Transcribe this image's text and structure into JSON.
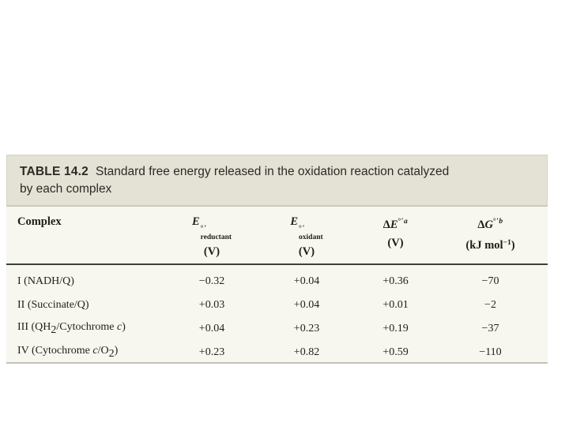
{
  "table": {
    "title_label": "TABLE 14.2",
    "title_line1": "Standard free energy released in the oxidation reaction catalyzed",
    "title_line2": "by each complex",
    "columns": {
      "complex": {
        "label": "Complex"
      },
      "e_reductant": {
        "symbol": "E",
        "sup": "°′",
        "sub": "reductant",
        "unit": "(V)"
      },
      "e_oxidant": {
        "symbol": "E",
        "sup": "°′",
        "sub": "oxidant",
        "unit": "(V)"
      },
      "delta_e": {
        "delta": "Δ",
        "symbol": "E",
        "sup": "°′",
        "sup_var": "a",
        "unit": "(V)"
      },
      "delta_g": {
        "delta": "Δ",
        "symbol": "G",
        "sup": "°′",
        "sup_var": "b",
        "unit_pre": "(kJ mol",
        "unit_sup": "−1",
        "unit_post": ")"
      }
    },
    "rows": [
      {
        "complex_html": "I (NADH/Q)",
        "e_reductant": "−0.32",
        "e_oxidant": "+0.04",
        "delta_e": "+0.36",
        "delta_g": "−70"
      },
      {
        "complex_html": "II (Succinate/Q)",
        "e_reductant": "+0.03",
        "e_oxidant": "+0.04",
        "delta_e": "+0.01",
        "delta_g": "−2"
      },
      {
        "complex_html": "III (QH<sub>2</sub>/Cytochrome <i>c</i>)",
        "e_reductant": "+0.04",
        "e_oxidant": "+0.23",
        "delta_e": "+0.19",
        "delta_g": "−37"
      },
      {
        "complex_html": "IV (Cytochrome <i>c</i>/O<sub>2</sub>)",
        "e_reductant": "+0.23",
        "e_oxidant": "+0.82",
        "delta_e": "+0.59",
        "delta_g": "−110"
      }
    ]
  },
  "colors": {
    "title_bg": "#e4e2d4",
    "body_bg": "#f7f6ef",
    "rule_dark": "#403f3a",
    "rule_light": "#c5c4b6",
    "text": "#211f1b"
  }
}
